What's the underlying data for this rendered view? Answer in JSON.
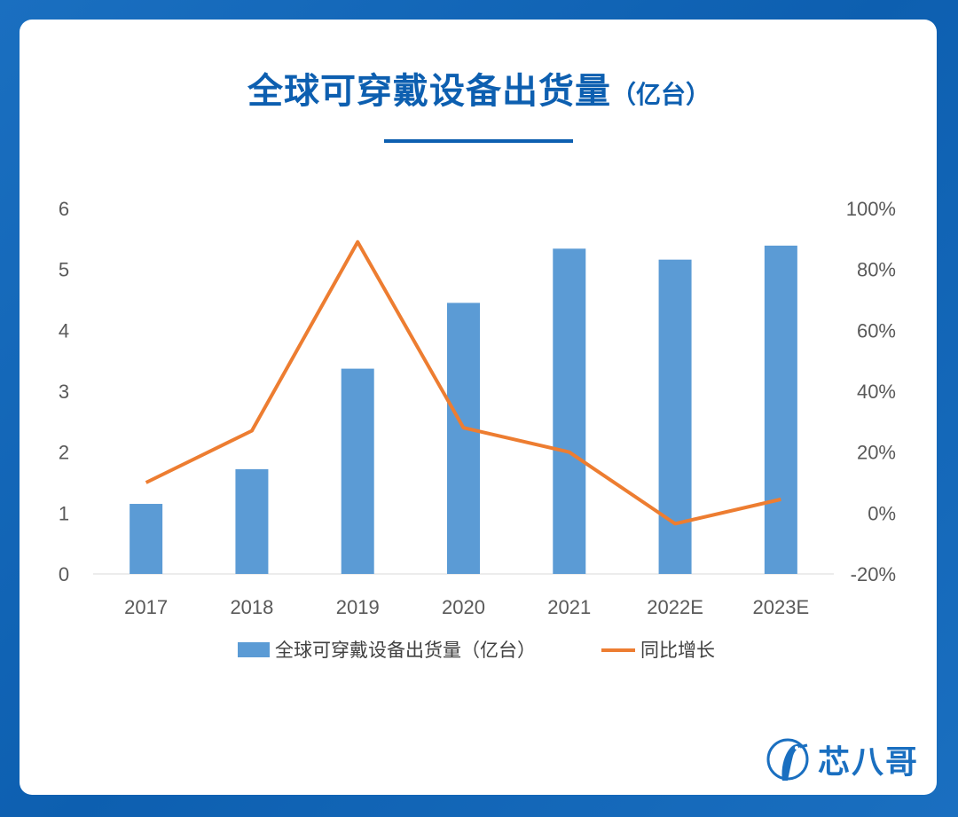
{
  "page": {
    "title_main": "全球可穿戴设备出货量",
    "title_unit": "（亿台）",
    "logo_text": "芯八哥",
    "logo_icon": "bird-logo-icon",
    "colors": {
      "background": "#1a6fc0",
      "title": "#0d5fb0",
      "bar": "#5b9bd5",
      "line": "#ed7d31"
    }
  },
  "chart_data": {
    "type": "bar",
    "categories": [
      "2017",
      "2018",
      "2019",
      "2020",
      "2021",
      "2022E",
      "2023E"
    ],
    "series": [
      {
        "name": "全球可穿戴设备出货量（亿台）",
        "type": "bar",
        "axis": "left",
        "values": [
          1.15,
          1.72,
          3.37,
          4.45,
          5.34,
          5.16,
          5.39
        ]
      },
      {
        "name": "同比增长",
        "type": "line",
        "axis": "right",
        "values": [
          10,
          27,
          89,
          28,
          20,
          -3.5,
          4.5
        ]
      }
    ],
    "y_left": {
      "min": 0,
      "max": 6,
      "ticks": [
        "0",
        "1",
        "2",
        "3",
        "4",
        "5",
        "6"
      ]
    },
    "y_right": {
      "min": -20,
      "max": 100,
      "ticks": [
        "-20%",
        "0%",
        "20%",
        "40%",
        "60%",
        "80%",
        "100%"
      ]
    },
    "legend_position": "bottom",
    "grid": false
  }
}
